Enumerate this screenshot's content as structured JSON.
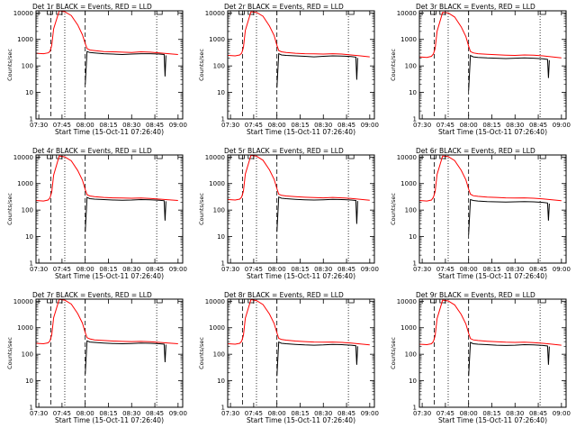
{
  "colors": {
    "events": "#000000",
    "lld": "#ff0000",
    "frame": "#000000"
  },
  "shared": {
    "xlabel": "Start Time (15-Oct-11 07:26:40)",
    "ylabel": "Counts/sec",
    "xticks": [
      "07:30",
      "07:45",
      "08:00",
      "08:15",
      "08:30",
      "08:45",
      "09:00"
    ],
    "yticks": [
      "1",
      "10",
      "100",
      "1000",
      "10000"
    ]
  },
  "chart_data": [
    {
      "type": "line",
      "title": "Det 1r BLACK = Events, RED = LLD",
      "xlim": [
        7.47,
        9.05
      ],
      "ylim": [
        1,
        12000
      ],
      "yscale": "log",
      "dashed_lines": [
        7.63,
        8.0
      ],
      "dotted_lines": [
        7.78,
        8.77
      ],
      "series": [
        {
          "name": "LLD",
          "color": "#ff0000",
          "x": [
            7.47,
            7.55,
            7.6,
            7.62,
            7.64,
            7.66,
            7.72,
            7.78,
            7.85,
            7.92,
            7.97,
            8.0,
            8.02,
            8.05,
            8.1,
            8.2,
            8.3,
            8.4,
            8.5,
            8.6,
            8.7,
            8.8,
            8.9,
            9.0
          ],
          "y": [
            300,
            290,
            310,
            350,
            600,
            2500,
            12000,
            11000,
            8000,
            3500,
            1500,
            700,
            450,
            400,
            380,
            350,
            340,
            330,
            320,
            340,
            330,
            310,
            290,
            270
          ]
        },
        {
          "name": "Events",
          "color": "#000000",
          "x": [
            8.0,
            8.02,
            8.05,
            8.1,
            8.2,
            8.3,
            8.4,
            8.5,
            8.6,
            8.7,
            8.8,
            8.85,
            8.86,
            8.87
          ],
          "y": [
            20,
            350,
            320,
            310,
            290,
            280,
            270,
            280,
            290,
            290,
            280,
            270,
            40,
            250
          ]
        }
      ]
    },
    {
      "type": "line",
      "title": "Det 2r BLACK = Events, RED = LLD",
      "xlim": [
        7.47,
        9.05
      ],
      "ylim": [
        1,
        12000
      ],
      "yscale": "log",
      "dashed_lines": [
        7.63,
        8.0
      ],
      "dotted_lines": [
        7.78,
        8.77
      ],
      "series": [
        {
          "name": "LLD",
          "color": "#ff0000",
          "x": [
            7.47,
            7.55,
            7.6,
            7.62,
            7.64,
            7.66,
            7.72,
            7.78,
            7.85,
            7.92,
            7.97,
            8.0,
            8.02,
            8.05,
            8.1,
            8.2,
            8.3,
            8.4,
            8.5,
            8.6,
            8.7,
            8.8,
            8.9,
            9.0
          ],
          "y": [
            250,
            240,
            260,
            300,
            500,
            2200,
            11000,
            10500,
            7500,
            3200,
            1400,
            600,
            380,
            340,
            320,
            300,
            290,
            285,
            280,
            290,
            280,
            260,
            240,
            220
          ]
        },
        {
          "name": "Events",
          "color": "#000000",
          "x": [
            8.0,
            8.02,
            8.05,
            8.1,
            8.2,
            8.3,
            8.4,
            8.5,
            8.6,
            8.7,
            8.8,
            8.85,
            8.86,
            8.87
          ],
          "y": [
            15,
            290,
            260,
            250,
            240,
            230,
            220,
            230,
            240,
            235,
            225,
            215,
            30,
            200
          ]
        }
      ]
    },
    {
      "type": "line",
      "title": "Det 3r BLACK = Events, RED = LLD",
      "xlim": [
        7.47,
        9.05
      ],
      "ylim": [
        1,
        12000
      ],
      "yscale": "log",
      "dashed_lines": [
        7.63,
        8.0
      ],
      "dotted_lines": [
        7.78,
        8.77
      ],
      "series": [
        {
          "name": "LLD",
          "color": "#ff0000",
          "x": [
            7.47,
            7.55,
            7.6,
            7.62,
            7.64,
            7.66,
            7.72,
            7.78,
            7.85,
            7.92,
            7.97,
            8.0,
            8.02,
            8.05,
            8.1,
            8.2,
            8.3,
            8.4,
            8.5,
            8.6,
            8.7,
            8.8,
            8.9,
            9.0
          ],
          "y": [
            220,
            210,
            230,
            280,
            450,
            2000,
            10500,
            10000,
            7000,
            3000,
            1300,
            560,
            350,
            310,
            290,
            275,
            265,
            255,
            250,
            260,
            255,
            240,
            220,
            200
          ]
        },
        {
          "name": "Events",
          "color": "#000000",
          "x": [
            8.0,
            8.02,
            8.05,
            8.1,
            8.2,
            8.3,
            8.4,
            8.5,
            8.6,
            8.7,
            8.8,
            8.85,
            8.86,
            8.87
          ],
          "y": [
            12,
            250,
            220,
            210,
            200,
            195,
            190,
            195,
            200,
            195,
            185,
            175,
            35,
            165
          ]
        }
      ]
    },
    {
      "type": "line",
      "title": "Det 4r BLACK = Events, RED = LLD",
      "xlim": [
        7.47,
        9.05
      ],
      "ylim": [
        1,
        12000
      ],
      "yscale": "log",
      "dashed_lines": [
        7.63,
        8.0
      ],
      "dotted_lines": [
        7.78,
        8.77
      ],
      "series": [
        {
          "name": "LLD",
          "color": "#ff0000",
          "x": [
            7.47,
            7.55,
            7.6,
            7.62,
            7.64,
            7.66,
            7.72,
            7.78,
            7.85,
            7.92,
            7.97,
            8.0,
            8.02,
            8.05,
            8.1,
            8.2,
            8.3,
            8.4,
            8.5,
            8.6,
            8.7,
            8.8,
            8.9,
            9.0
          ],
          "y": [
            230,
            220,
            240,
            290,
            480,
            2100,
            11000,
            10200,
            7200,
            3100,
            1350,
            600,
            380,
            340,
            320,
            300,
            290,
            285,
            280,
            285,
            275,
            260,
            245,
            230
          ]
        },
        {
          "name": "Events",
          "color": "#000000",
          "x": [
            8.0,
            8.02,
            8.05,
            8.1,
            8.2,
            8.3,
            8.4,
            8.5,
            8.6,
            8.7,
            8.8,
            8.85,
            8.86,
            8.87
          ],
          "y": [
            15,
            300,
            270,
            260,
            250,
            240,
            235,
            240,
            250,
            245,
            235,
            225,
            40,
            215
          ]
        }
      ]
    },
    {
      "type": "line",
      "title": "Det 5r BLACK = Events, RED = LLD",
      "xlim": [
        7.47,
        9.05
      ],
      "ylim": [
        1,
        12000
      ],
      "yscale": "log",
      "dashed_lines": [
        7.63,
        8.0
      ],
      "dotted_lines": [
        7.78,
        8.77
      ],
      "series": [
        {
          "name": "LLD",
          "color": "#ff0000",
          "x": [
            7.47,
            7.55,
            7.6,
            7.62,
            7.64,
            7.66,
            7.72,
            7.78,
            7.85,
            7.92,
            7.97,
            8.0,
            8.02,
            8.05,
            8.1,
            8.2,
            8.3,
            8.4,
            8.5,
            8.6,
            8.7,
            8.8,
            8.9,
            9.0
          ],
          "y": [
            250,
            240,
            260,
            310,
            520,
            2300,
            11500,
            10800,
            7600,
            3300,
            1450,
            640,
            400,
            360,
            340,
            320,
            305,
            295,
            290,
            300,
            290,
            275,
            255,
            235
          ]
        },
        {
          "name": "Events",
          "color": "#000000",
          "x": [
            8.0,
            8.02,
            8.05,
            8.1,
            8.2,
            8.3,
            8.4,
            8.5,
            8.6,
            8.7,
            8.8,
            8.85,
            8.86,
            8.87
          ],
          "y": [
            15,
            310,
            280,
            270,
            255,
            245,
            240,
            245,
            255,
            250,
            240,
            230,
            30,
            220
          ]
        }
      ]
    },
    {
      "type": "line",
      "title": "Det 6r BLACK = Events, RED = LLD",
      "xlim": [
        7.47,
        9.05
      ],
      "ylim": [
        1,
        12000
      ],
      "yscale": "log",
      "dashed_lines": [
        7.63,
        8.0
      ],
      "dotted_lines": [
        7.78,
        8.77
      ],
      "series": [
        {
          "name": "LLD",
          "color": "#ff0000",
          "x": [
            7.47,
            7.55,
            7.6,
            7.62,
            7.64,
            7.66,
            7.72,
            7.78,
            7.85,
            7.92,
            7.97,
            8.0,
            8.02,
            8.05,
            8.1,
            8.2,
            8.3,
            8.4,
            8.5,
            8.6,
            8.7,
            8.8,
            8.9,
            9.0
          ],
          "y": [
            230,
            220,
            240,
            300,
            500,
            2200,
            11000,
            10500,
            7400,
            3200,
            1400,
            620,
            400,
            350,
            330,
            310,
            300,
            290,
            285,
            290,
            280,
            265,
            245,
            225
          ]
        },
        {
          "name": "Events",
          "color": "#000000",
          "x": [
            8.0,
            8.02,
            8.05,
            8.1,
            8.2,
            8.3,
            8.4,
            8.5,
            8.6,
            8.7,
            8.8,
            8.85,
            8.86,
            8.87
          ],
          "y": [
            12,
            250,
            230,
            220,
            210,
            205,
            200,
            205,
            210,
            205,
            195,
            185,
            40,
            175
          ]
        }
      ]
    },
    {
      "type": "line",
      "title": "Det 7r BLACK = Events, RED = LLD",
      "xlim": [
        7.47,
        9.05
      ],
      "ylim": [
        1,
        12000
      ],
      "yscale": "log",
      "dashed_lines": [
        7.63,
        8.0
      ],
      "dotted_lines": [
        7.78,
        8.77
      ],
      "series": [
        {
          "name": "LLD",
          "color": "#ff0000",
          "x": [
            7.47,
            7.55,
            7.6,
            7.62,
            7.64,
            7.66,
            7.72,
            7.78,
            7.85,
            7.92,
            7.97,
            8.0,
            8.02,
            8.05,
            8.1,
            8.2,
            8.3,
            8.4,
            8.5,
            8.6,
            8.7,
            8.8,
            8.9,
            9.0
          ],
          "y": [
            260,
            250,
            270,
            320,
            540,
            2400,
            11800,
            11000,
            7800,
            3400,
            1500,
            660,
            420,
            380,
            350,
            330,
            315,
            305,
            300,
            305,
            295,
            280,
            265,
            250
          ]
        },
        {
          "name": "Events",
          "color": "#000000",
          "x": [
            8.0,
            8.02,
            8.05,
            8.1,
            8.2,
            8.3,
            8.4,
            8.5,
            8.6,
            8.7,
            8.8,
            8.85,
            8.86,
            8.87
          ],
          "y": [
            18,
            320,
            290,
            280,
            265,
            255,
            250,
            255,
            265,
            260,
            250,
            240,
            50,
            230
          ]
        }
      ]
    },
    {
      "type": "line",
      "title": "Det 8r BLACK = Events, RED = LLD",
      "xlim": [
        7.47,
        9.05
      ],
      "ylim": [
        1,
        12000
      ],
      "yscale": "log",
      "dashed_lines": [
        7.63,
        8.0
      ],
      "dotted_lines": [
        7.78,
        8.77
      ],
      "series": [
        {
          "name": "LLD",
          "color": "#ff0000",
          "x": [
            7.47,
            7.55,
            7.6,
            7.62,
            7.64,
            7.66,
            7.72,
            7.78,
            7.85,
            7.92,
            7.97,
            8.0,
            8.02,
            8.05,
            8.1,
            8.2,
            8.3,
            8.4,
            8.5,
            8.6,
            8.7,
            8.8,
            8.9,
            9.0
          ],
          "y": [
            250,
            240,
            260,
            310,
            520,
            2300,
            11500,
            10600,
            7500,
            3300,
            1450,
            640,
            400,
            360,
            340,
            315,
            300,
            290,
            285,
            290,
            280,
            265,
            245,
            225
          ]
        },
        {
          "name": "Events",
          "color": "#000000",
          "x": [
            8.0,
            8.02,
            8.05,
            8.1,
            8.2,
            8.3,
            8.4,
            8.5,
            8.6,
            8.7,
            8.8,
            8.85,
            8.86,
            8.87
          ],
          "y": [
            15,
            290,
            260,
            250,
            235,
            225,
            220,
            225,
            235,
            230,
            220,
            210,
            40,
            200
          ]
        }
      ]
    },
    {
      "type": "line",
      "title": "Det 9r BLACK = Events, RED = LLD",
      "xlim": [
        7.47,
        9.05
      ],
      "ylim": [
        1,
        12000
      ],
      "yscale": "log",
      "dashed_lines": [
        7.63,
        8.0
      ],
      "dotted_lines": [
        7.78,
        8.77
      ],
      "series": [
        {
          "name": "LLD",
          "color": "#ff0000",
          "x": [
            7.47,
            7.55,
            7.6,
            7.62,
            7.64,
            7.66,
            7.72,
            7.78,
            7.85,
            7.92,
            7.97,
            8.0,
            8.02,
            8.05,
            8.1,
            8.2,
            8.3,
            8.4,
            8.5,
            8.6,
            8.7,
            8.8,
            8.9,
            9.0
          ],
          "y": [
            240,
            230,
            250,
            300,
            500,
            2200,
            11000,
            10300,
            7300,
            3200,
            1400,
            620,
            390,
            350,
            330,
            310,
            295,
            285,
            280,
            285,
            275,
            260,
            240,
            220
          ]
        },
        {
          "name": "Events",
          "color": "#000000",
          "x": [
            8.0,
            8.02,
            8.05,
            8.1,
            8.2,
            8.3,
            8.4,
            8.5,
            8.6,
            8.7,
            8.8,
            8.85,
            8.86,
            8.87
          ],
          "y": [
            15,
            280,
            250,
            240,
            230,
            220,
            215,
            220,
            230,
            225,
            215,
            205,
            40,
            195
          ]
        }
      ]
    }
  ]
}
